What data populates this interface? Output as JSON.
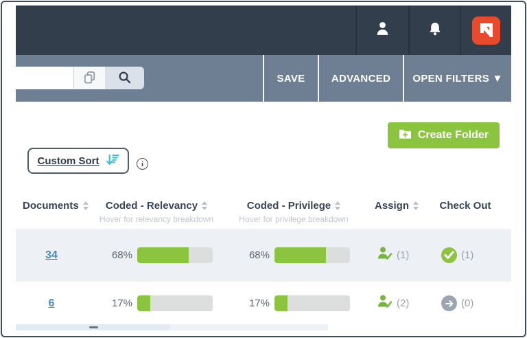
{
  "topbar": {
    "user_icon": "user",
    "notifications_icon": "bell",
    "logo_letter": "N"
  },
  "filter_bar": {
    "search_value": "",
    "copy_icon": "copy",
    "search_icon": "search",
    "save_label": "SAVE",
    "advanced_label": "ADVANCED",
    "open_filters_label": "OPEN FILTERS ▼"
  },
  "content": {
    "create_folder_label": "Create Folder",
    "custom_sort_label": "Custom Sort",
    "info_glyph": "i"
  },
  "table": {
    "columns": {
      "documents": "Documents",
      "relevancy": "Coded - Relevancy",
      "relevancy_sub": "Hover for relevancy breakdown",
      "privilege": "Coded - Privilege",
      "privilege_sub": "Hover for privilege breakdown",
      "assign": "Assign",
      "checkout": "Check Out"
    },
    "rows": [
      {
        "documents": "34",
        "relevancy_label": "68%",
        "relevancy_pct": 68,
        "privilege_label": "68%",
        "privilege_pct": 68,
        "assign_count": "(1)",
        "checkout_count": "(1)",
        "checkout_state": "checked-out"
      },
      {
        "documents": "6",
        "relevancy_label": "17%",
        "relevancy_pct": 17,
        "privilege_label": "17%",
        "privilege_pct": 17,
        "assign_count": "(2)",
        "checkout_count": "(0)",
        "checkout_state": "available"
      }
    ]
  },
  "colors": {
    "topbar_navy": "#333e4d",
    "filterbar_blue_gray": "#6e7f93",
    "accent_green": "#8bc53f",
    "sort_teal": "#3ec1ca",
    "logo_red": "#e84a2d",
    "link_blue": "#4a8ac2",
    "row_alt_bg": "#edf1f6"
  }
}
